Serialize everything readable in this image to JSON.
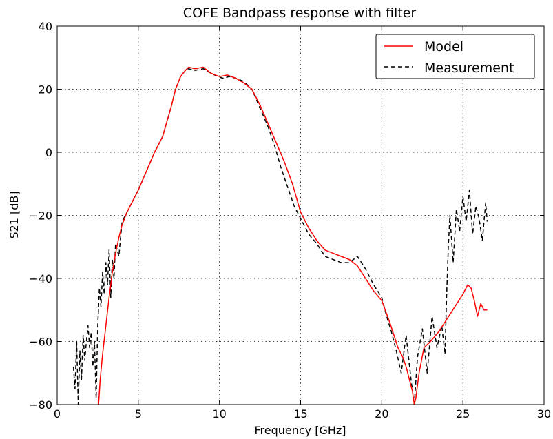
{
  "chart_data": {
    "type": "line",
    "title": "COFE Bandpass response with filter",
    "xlabel": "Frequency [GHz]",
    "ylabel": "S21 [dB]",
    "xlim": [
      0,
      30
    ],
    "ylim": [
      -80,
      40
    ],
    "xticks": [
      0,
      5,
      10,
      15,
      20,
      25,
      30
    ],
    "yticks": [
      -80,
      -60,
      -40,
      -20,
      0,
      20,
      40
    ],
    "grid": true,
    "legend_position": "top-right",
    "series": [
      {
        "name": "Model",
        "color": "#ff0000",
        "style": "solid",
        "x": [
          2.55,
          2.65,
          2.8,
          3.0,
          3.2,
          3.4,
          3.6,
          3.8,
          4.0,
          4.3,
          4.6,
          5.0,
          5.5,
          6.0,
          6.5,
          7.0,
          7.3,
          7.6,
          7.9,
          8.1,
          8.5,
          9.0,
          9.5,
          10.0,
          10.5,
          11.0,
          11.5,
          12.0,
          12.5,
          13.0,
          13.5,
          14.0,
          14.5,
          15.0,
          15.5,
          16.0,
          16.5,
          17.0,
          17.5,
          18.0,
          18.5,
          19.0,
          19.5,
          20.0,
          20.5,
          21.0,
          21.3,
          21.5,
          21.7,
          21.9,
          22.0,
          22.1,
          22.3,
          22.6,
          23.0,
          23.5,
          24.0,
          24.5,
          25.0,
          25.3,
          25.5,
          25.7,
          25.9,
          26.1,
          26.3,
          26.5
        ],
        "y": [
          -80,
          -72,
          -64,
          -55,
          -46,
          -38,
          -32,
          -27,
          -23,
          -19,
          -16,
          -12,
          -6,
          0,
          5,
          14,
          20,
          24,
          26,
          27,
          26.5,
          27,
          25,
          24,
          24.5,
          23.5,
          22,
          20,
          15,
          9,
          3,
          -3,
          -10,
          -19,
          -24,
          -28,
          -31,
          -32,
          -33,
          -34,
          -36,
          -40,
          -44,
          -47,
          -54,
          -62,
          -65,
          -68,
          -72,
          -76,
          -80,
          -78,
          -70,
          -62,
          -60,
          -57,
          -53,
          -49,
          -45,
          -42,
          -43,
          -47,
          -52,
          -48,
          -50,
          -50
        ]
      },
      {
        "name": "Measurement",
        "color": "#000000",
        "style": "dashed",
        "x": [
          1.0,
          1.1,
          1.2,
          1.3,
          1.4,
          1.5,
          1.6,
          1.7,
          1.8,
          1.9,
          2.0,
          2.1,
          2.2,
          2.3,
          2.4,
          2.5,
          2.6,
          2.7,
          2.8,
          2.9,
          3.0,
          3.1,
          3.2,
          3.3,
          3.4,
          3.5,
          3.6,
          3.8,
          4.0,
          4.3,
          4.6,
          5.0,
          5.5,
          6.0,
          6.5,
          7.0,
          7.3,
          7.6,
          7.9,
          8.1,
          8.5,
          9.0,
          9.5,
          9.9,
          10.2,
          10.6,
          11.0,
          11.5,
          12.0,
          12.5,
          13.0,
          13.4,
          13.8,
          14.2,
          14.6,
          15.0,
          15.5,
          16.0,
          16.5,
          17.0,
          17.5,
          18.0,
          18.5,
          19.0,
          19.5,
          20.0,
          20.3,
          20.6,
          20.9,
          21.2,
          21.5,
          21.8,
          22.0,
          22.2,
          22.5,
          22.8,
          23.1,
          23.4,
          23.7,
          23.9,
          24.0,
          24.1,
          24.2,
          24.4,
          24.6,
          24.8,
          25.0,
          25.2,
          25.4,
          25.6,
          25.8,
          26.0,
          26.2,
          26.4,
          26.5
        ],
        "y": [
          -68,
          -75,
          -60,
          -80,
          -63,
          -72,
          -58,
          -66,
          -60,
          -55,
          -62,
          -57,
          -68,
          -60,
          -78,
          -55,
          -43,
          -49,
          -38,
          -45,
          -35,
          -42,
          -31,
          -46,
          -34,
          -40,
          -29,
          -33,
          -22,
          -19,
          -16,
          -12,
          -6,
          0,
          5,
          14,
          20,
          24,
          26,
          26.5,
          26,
          26.5,
          25,
          24,
          23.5,
          24,
          23.5,
          22.5,
          20,
          14,
          8,
          2,
          -5,
          -11,
          -17,
          -21,
          -26,
          -29,
          -33,
          -34,
          -35,
          -35,
          -33,
          -37,
          -42,
          -46,
          -52,
          -57,
          -63,
          -70,
          -58,
          -72,
          -80,
          -65,
          -56,
          -70,
          -52,
          -62,
          -55,
          -64,
          -45,
          -30,
          -20,
          -35,
          -18,
          -25,
          -14,
          -22,
          -12,
          -26,
          -17,
          -21,
          -28,
          -16,
          -22
        ]
      }
    ]
  }
}
